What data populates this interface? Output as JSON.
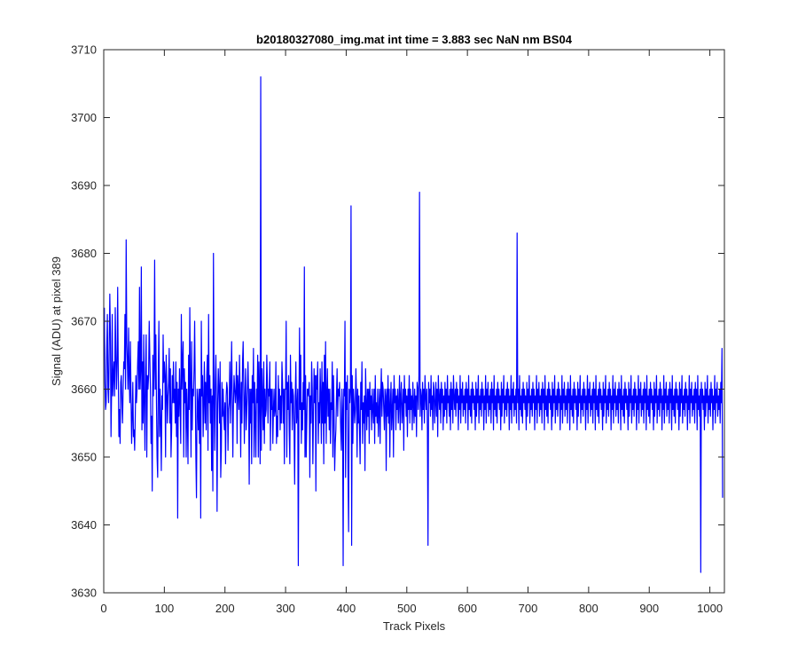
{
  "chart_data": {
    "type": "line",
    "title": "b20180327080_img.mat int time = 3.883 sec  NaN nm BS04",
    "xlabel": "Track Pixels",
    "ylabel": "Signal (ADU) at pixel 389",
    "xlim": [
      0,
      1024
    ],
    "ylim": [
      3630,
      3710
    ],
    "xticks": [
      0,
      100,
      200,
      300,
      400,
      500,
      600,
      700,
      800,
      900,
      1000
    ],
    "yticks": [
      3630,
      3640,
      3650,
      3660,
      3670,
      3680,
      3690,
      3700,
      3710
    ],
    "grid": false,
    "series": [
      {
        "color": "#0000ff",
        "x_start": 1,
        "x_step": 1,
        "values": [
          3672,
          3661,
          3657,
          3658,
          3666,
          3671,
          3660,
          3658,
          3666,
          3674,
          3668,
          3653,
          3660,
          3671,
          3659,
          3662,
          3664,
          3659,
          3672,
          3665,
          3660,
          3664,
          3675,
          3662,
          3653,
          3657,
          3652,
          3661,
          3662,
          3658,
          3655,
          3660,
          3664,
          3663,
          3671,
          3660,
          3682,
          3667,
          3664,
          3660,
          3669,
          3662,
          3658,
          3667,
          3659,
          3652,
          3656,
          3661,
          3653,
          3654,
          3651,
          3656,
          3662,
          3658,
          3660,
          3664,
          3667,
          3660,
          3675,
          3660,
          3663,
          3678,
          3654,
          3664,
          3655,
          3668,
          3658,
          3651,
          3663,
          3668,
          3650,
          3662,
          3660,
          3662,
          3670,
          3665,
          3660,
          3652,
          3656,
          3645,
          3665,
          3659,
          3663,
          3679,
          3660,
          3668,
          3658,
          3650,
          3647,
          3662,
          3670,
          3653,
          3660,
          3655,
          3648,
          3659,
          3657,
          3668,
          3661,
          3664,
          3662,
          3650,
          3665,
          3660,
          3655,
          3659,
          3661,
          3666,
          3655,
          3663,
          3650,
          3654,
          3662,
          3658,
          3664,
          3658,
          3660,
          3655,
          3664,
          3653,
          3661,
          3641,
          3660,
          3656,
          3663,
          3658,
          3652,
          3671,
          3660,
          3664,
          3667,
          3650,
          3663,
          3658,
          3661,
          3650,
          3660,
          3656,
          3649,
          3665,
          3657,
          3672,
          3661,
          3650,
          3667,
          3654,
          3660,
          3659,
          3663,
          3670,
          3660,
          3650,
          3644,
          3660,
          3658,
          3654,
          3660,
          3652,
          3660,
          3641,
          3670,
          3659,
          3662,
          3653,
          3658,
          3664,
          3655,
          3661,
          3654,
          3662,
          3665,
          3651,
          3671,
          3658,
          3662,
          3655,
          3660,
          3648,
          3659,
          3645,
          3680,
          3659,
          3651,
          3661,
          3665,
          3658,
          3642,
          3658,
          3663,
          3660,
          3655,
          3664,
          3647,
          3651,
          3661,
          3656,
          3660,
          3656,
          3654,
          3658,
          3649,
          3659,
          3661,
          3660,
          3651,
          3657,
          3658,
          3664,
          3655,
          3660,
          3667,
          3659,
          3650,
          3658,
          3662,
          3660,
          3658,
          3660,
          3664,
          3652,
          3662,
          3660,
          3657,
          3665,
          3659,
          3650,
          3661,
          3655,
          3664,
          3667,
          3660,
          3652,
          3659,
          3663,
          3654,
          3657,
          3660,
          3664,
          3659,
          3646,
          3660,
          3655,
          3660,
          3649,
          3662,
          3658,
          3666,
          3650,
          3661,
          3656,
          3650,
          3660,
          3658,
          3665,
          3650,
          3664,
          3659,
          3649,
          3706,
          3651,
          3663,
          3659,
          3654,
          3664,
          3652,
          3660,
          3656,
          3657,
          3665,
          3661,
          3655,
          3660,
          3659,
          3664,
          3651,
          3660,
          3657,
          3660,
          3652,
          3657,
          3660,
          3656,
          3657,
          3664,
          3652,
          3656,
          3653,
          3662,
          3657,
          3660,
          3654,
          3659,
          3655,
          3664,
          3661,
          3655,
          3660,
          3649,
          3660,
          3660,
          3670,
          3650,
          3661,
          3657,
          3662,
          3654,
          3649,
          3665,
          3658,
          3661,
          3654,
          3660,
          3659,
          3654,
          3646,
          3659,
          3664,
          3655,
          3657,
          3660,
          3634,
          3656,
          3669,
          3657,
          3665,
          3652,
          3658,
          3654,
          3661,
          3657,
          3678,
          3650,
          3662,
          3650,
          3655,
          3660,
          3660,
          3659,
          3661,
          3647,
          3659,
          3655,
          3664,
          3660,
          3649,
          3656,
          3663,
          3658,
          3662,
          3645,
          3662,
          3660,
          3664,
          3652,
          3658,
          3655,
          3663,
          3659,
          3652,
          3664,
          3655,
          3661,
          3649,
          3665,
          3655,
          3667,
          3652,
          3659,
          3663,
          3656,
          3660,
          3654,
          3660,
          3652,
          3658,
          3657,
          3664,
          3650,
          3662,
          3657,
          3648,
          3652,
          3654,
          3659,
          3663,
          3656,
          3660,
          3659,
          3661,
          3658,
          3654,
          3651,
          3660,
          3657,
          3634,
          3660,
          3659,
          3670,
          3647,
          3661,
          3657,
          3662,
          3648,
          3639,
          3660,
          3658,
          3660,
          3687,
          3637,
          3662,
          3652,
          3660,
          3658,
          3655,
          3657,
          3663,
          3659,
          3650,
          3660,
          3655,
          3659,
          3654,
          3649,
          3661,
          3657,
          3664,
          3652,
          3658,
          3655,
          3659,
          3648,
          3663,
          3658,
          3654,
          3660,
          3656,
          3660,
          3652,
          3661,
          3657,
          3659,
          3654,
          3660,
          3657,
          3655,
          3660,
          3652,
          3662,
          3656,
          3658,
          3655,
          3660,
          3653,
          3657,
          3660,
          3652,
          3659,
          3663,
          3656,
          3661,
          3660,
          3657,
          3654,
          3660,
          3659,
          3648,
          3660,
          3656,
          3662,
          3655,
          3660,
          3650,
          3658,
          3661,
          3654,
          3657,
          3660,
          3650,
          3662,
          3658,
          3660,
          3654,
          3659,
          3657,
          3660,
          3655,
          3658,
          3662,
          3654,
          3659,
          3661,
          3655,
          3657,
          3660,
          3651,
          3662,
          3658,
          3660,
          3656,
          3659,
          3653,
          3660,
          3657,
          3662,
          3655,
          3660,
          3657,
          3659,
          3654,
          3661,
          3658,
          3655,
          3660,
          3656,
          3659,
          3653,
          3661,
          3660,
          3657,
          3662,
          3689,
          3656,
          3660,
          3659,
          3654,
          3661,
          3657,
          3660,
          3655,
          3662,
          3659,
          3657,
          3660,
          3654,
          3637,
          3661,
          3658,
          3660,
          3656,
          3662,
          3657,
          3659,
          3654,
          3661,
          3660,
          3655,
          3658,
          3661,
          3656,
          3660,
          3653,
          3662,
          3659,
          3657,
          3660,
          3655,
          3661,
          3658,
          3660,
          3654,
          3659,
          3656,
          3661,
          3657,
          3660,
          3655,
          3662,
          3658,
          3659,
          3656,
          3660,
          3654,
          3661,
          3657,
          3660,
          3655,
          3662,
          3659,
          3657,
          3660,
          3656,
          3661,
          3658,
          3660,
          3654,
          3659,
          3657,
          3662,
          3655,
          3660,
          3658,
          3661,
          3656,
          3659,
          3657,
          3660,
          3655,
          3661,
          3658,
          3660,
          3654,
          3662,
          3657,
          3659,
          3656,
          3660,
          3655,
          3661,
          3658,
          3660,
          3657,
          3659,
          3654,
          3661,
          3656,
          3660,
          3658,
          3662,
          3655,
          3659,
          3657,
          3660,
          3656,
          3661,
          3658,
          3660,
          3654,
          3659,
          3657,
          3662,
          3655,
          3660,
          3658,
          3661,
          3656,
          3659,
          3657,
          3660,
          3655,
          3661,
          3658,
          3660,
          3654,
          3662,
          3657,
          3659,
          3656,
          3660,
          3655,
          3661,
          3658,
          3660,
          3657,
          3659,
          3654,
          3661,
          3656,
          3660,
          3658,
          3662,
          3655,
          3659,
          3657,
          3660,
          3656,
          3661,
          3658,
          3660,
          3654,
          3659,
          3657,
          3662,
          3655,
          3660,
          3658,
          3661,
          3656,
          3659,
          3657,
          3660,
          3655,
          3683,
          3658,
          3660,
          3654,
          3662,
          3657,
          3659,
          3656,
          3660,
          3655,
          3661,
          3658,
          3660,
          3657,
          3659,
          3654,
          3661,
          3656,
          3660,
          3658,
          3662,
          3655,
          3659,
          3657,
          3660,
          3656,
          3661,
          3658,
          3660,
          3654,
          3659,
          3657,
          3662,
          3655,
          3660,
          3658,
          3661,
          3656,
          3659,
          3657,
          3660,
          3655,
          3661,
          3658,
          3660,
          3654,
          3662,
          3657,
          3659,
          3656,
          3660,
          3655,
          3661,
          3658,
          3660,
          3657,
          3659,
          3654,
          3661,
          3656,
          3660,
          3658,
          3662,
          3655,
          3659,
          3657,
          3660,
          3656,
          3661,
          3658,
          3660,
          3654,
          3659,
          3657,
          3662,
          3655,
          3660,
          3658,
          3661,
          3656,
          3659,
          3657,
          3660,
          3655,
          3661,
          3658,
          3660,
          3654,
          3662,
          3657,
          3659,
          3656,
          3660,
          3655,
          3661,
          3658,
          3660,
          3657,
          3659,
          3654,
          3661,
          3656,
          3660,
          3658,
          3662,
          3655,
          3659,
          3657,
          3660,
          3656,
          3661,
          3658,
          3660,
          3654,
          3659,
          3657,
          3662,
          3655,
          3660,
          3658,
          3661,
          3656,
          3659,
          3657,
          3660,
          3655,
          3661,
          3658,
          3660,
          3654,
          3662,
          3657,
          3659,
          3656,
          3660,
          3655,
          3661,
          3658,
          3660,
          3657,
          3659,
          3654,
          3661,
          3656,
          3660,
          3658,
          3662,
          3655,
          3659,
          3657,
          3660,
          3656,
          3661,
          3658,
          3660,
          3654,
          3659,
          3657,
          3662,
          3655,
          3660,
          3658,
          3661,
          3656,
          3659,
          3657,
          3660,
          3655,
          3661,
          3658,
          3660,
          3654,
          3662,
          3657,
          3659,
          3656,
          3660,
          3655,
          3661,
          3658,
          3660,
          3657,
          3659,
          3654,
          3661,
          3656,
          3660,
          3658,
          3662,
          3655,
          3659,
          3657,
          3660,
          3656,
          3661,
          3658,
          3660,
          3654,
          3659,
          3657,
          3662,
          3655,
          3660,
          3658,
          3661,
          3656,
          3659,
          3657,
          3660,
          3655,
          3661,
          3658,
          3660,
          3654,
          3662,
          3657,
          3659,
          3656,
          3660,
          3655,
          3661,
          3658,
          3660,
          3657,
          3659,
          3654,
          3661,
          3656,
          3660,
          3658,
          3662,
          3655,
          3659,
          3657,
          3660,
          3656,
          3661,
          3658,
          3660,
          3654,
          3659,
          3657,
          3662,
          3655,
          3660,
          3658,
          3661,
          3656,
          3659,
          3657,
          3660,
          3655,
          3661,
          3658,
          3660,
          3654,
          3662,
          3657,
          3659,
          3656,
          3660,
          3655,
          3661,
          3658,
          3660,
          3657,
          3659,
          3654,
          3661,
          3656,
          3660,
          3658,
          3662,
          3655,
          3659,
          3657,
          3660,
          3656,
          3661,
          3658,
          3660,
          3654,
          3659,
          3657,
          3662,
          3655,
          3660,
          3658,
          3661,
          3656,
          3659,
          3657,
          3660,
          3655,
          3661,
          3658,
          3660,
          3654,
          3662,
          3657,
          3659,
          3656,
          3660,
          3633,
          3661,
          3658,
          3660,
          3657,
          3659,
          3654,
          3661,
          3656,
          3660,
          3658,
          3662,
          3655,
          3659,
          3657,
          3660,
          3656,
          3661,
          3658,
          3660,
          3654,
          3659,
          3657,
          3662,
          3655,
          3660,
          3658,
          3661,
          3656,
          3659,
          3657,
          3660,
          3655,
          3661,
          3658,
          3666,
          3644
        ]
      }
    ]
  }
}
